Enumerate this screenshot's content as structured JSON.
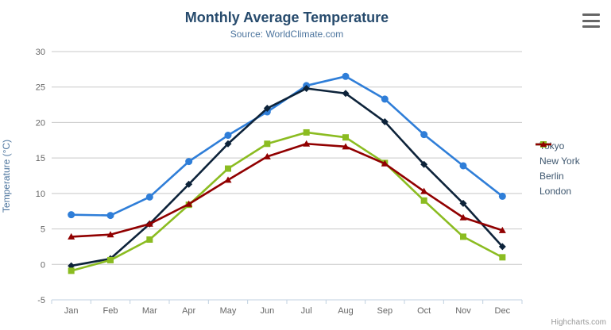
{
  "chart_data": {
    "type": "line",
    "title": "Monthly Average Temperature",
    "subtitle": "Source: WorldClimate.com",
    "xlabel": "",
    "ylabel": "Temperature (°C)",
    "ylim": [
      -5,
      30
    ],
    "ytick_step": 5,
    "grid": true,
    "legend_position": "right",
    "categories": [
      "Jan",
      "Feb",
      "Mar",
      "Apr",
      "May",
      "Jun",
      "Jul",
      "Aug",
      "Sep",
      "Oct",
      "Nov",
      "Dec"
    ],
    "series": [
      {
        "name": "Tokyo",
        "color": "#2f7ed8",
        "marker": "circle",
        "values": [
          7.0,
          6.9,
          9.5,
          14.5,
          18.2,
          21.5,
          25.2,
          26.5,
          23.3,
          18.3,
          13.9,
          9.6
        ]
      },
      {
        "name": "New York",
        "color": "#0d233a",
        "marker": "diamond",
        "values": [
          -0.2,
          0.8,
          5.7,
          11.3,
          17.0,
          22.0,
          24.8,
          24.1,
          20.1,
          14.1,
          8.6,
          2.5
        ]
      },
      {
        "name": "Berlin",
        "color": "#8bbc21",
        "marker": "square",
        "values": [
          -0.9,
          0.6,
          3.5,
          8.4,
          13.5,
          17.0,
          18.6,
          17.9,
          14.3,
          9.0,
          3.9,
          1.0
        ]
      },
      {
        "name": "London",
        "color": "#910000",
        "marker": "triangle",
        "values": [
          3.9,
          4.2,
          5.7,
          8.5,
          11.9,
          15.2,
          17.0,
          16.6,
          14.2,
          10.3,
          6.6,
          4.8
        ]
      }
    ]
  },
  "styles": {
    "grid_color": "#c8c8c8",
    "axis_line_color": "#c0d0e0",
    "tick_label_color": "#666666",
    "legend_text_color": "#3E576F"
  },
  "credits": {
    "label": "Highcharts.com"
  },
  "menu": {
    "icon": "hamburger-icon"
  }
}
